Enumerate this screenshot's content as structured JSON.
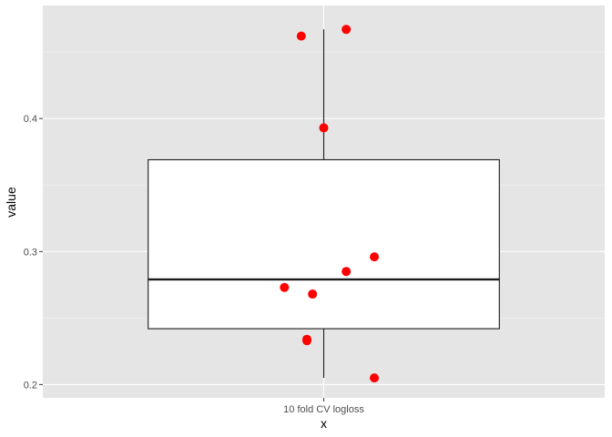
{
  "chart_data": {
    "type": "boxplot",
    "xlabel": "x",
    "ylabel": "value",
    "categories": [
      "10 fold CV logloss"
    ],
    "ylim": [
      0.19,
      0.485
    ],
    "y_ticks": [
      0.2,
      0.3,
      0.4
    ],
    "y_tick_labels": [
      "0.2",
      "0.3",
      "0.4"
    ],
    "grid": true,
    "legend": "none",
    "box": {
      "category": "10 fold CV logloss",
      "whisker_low": 0.205,
      "q1": 0.242,
      "median": 0.279,
      "q3": 0.369,
      "whisker_high": 0.467
    },
    "points": [
      {
        "x": "10 fold CV logloss",
        "y": 0.467,
        "jitter": 0.04
      },
      {
        "x": "10 fold CV logloss",
        "y": 0.462,
        "jitter": -0.04
      },
      {
        "x": "10 fold CV logloss",
        "y": 0.393,
        "jitter": 0.0
      },
      {
        "x": "10 fold CV logloss",
        "y": 0.296,
        "jitter": 0.09
      },
      {
        "x": "10 fold CV logloss",
        "y": 0.285,
        "jitter": 0.04
      },
      {
        "x": "10 fold CV logloss",
        "y": 0.273,
        "jitter": -0.07
      },
      {
        "x": "10 fold CV logloss",
        "y": 0.268,
        "jitter": -0.02
      },
      {
        "x": "10 fold CV logloss",
        "y": 0.234,
        "jitter": -0.03
      },
      {
        "x": "10 fold CV logloss",
        "y": 0.233,
        "jitter": -0.03
      },
      {
        "x": "10 fold CV logloss",
        "y": 0.205,
        "jitter": 0.09
      }
    ],
    "colors": {
      "panel_background": "#e5e5e5",
      "grid_major": "#ffffff",
      "grid_minor": "#f2f2f2",
      "box_fill": "#ffffff",
      "box_stroke": "#1a1a1a",
      "point": "#ff0000",
      "tick_mark": "#333333"
    }
  }
}
